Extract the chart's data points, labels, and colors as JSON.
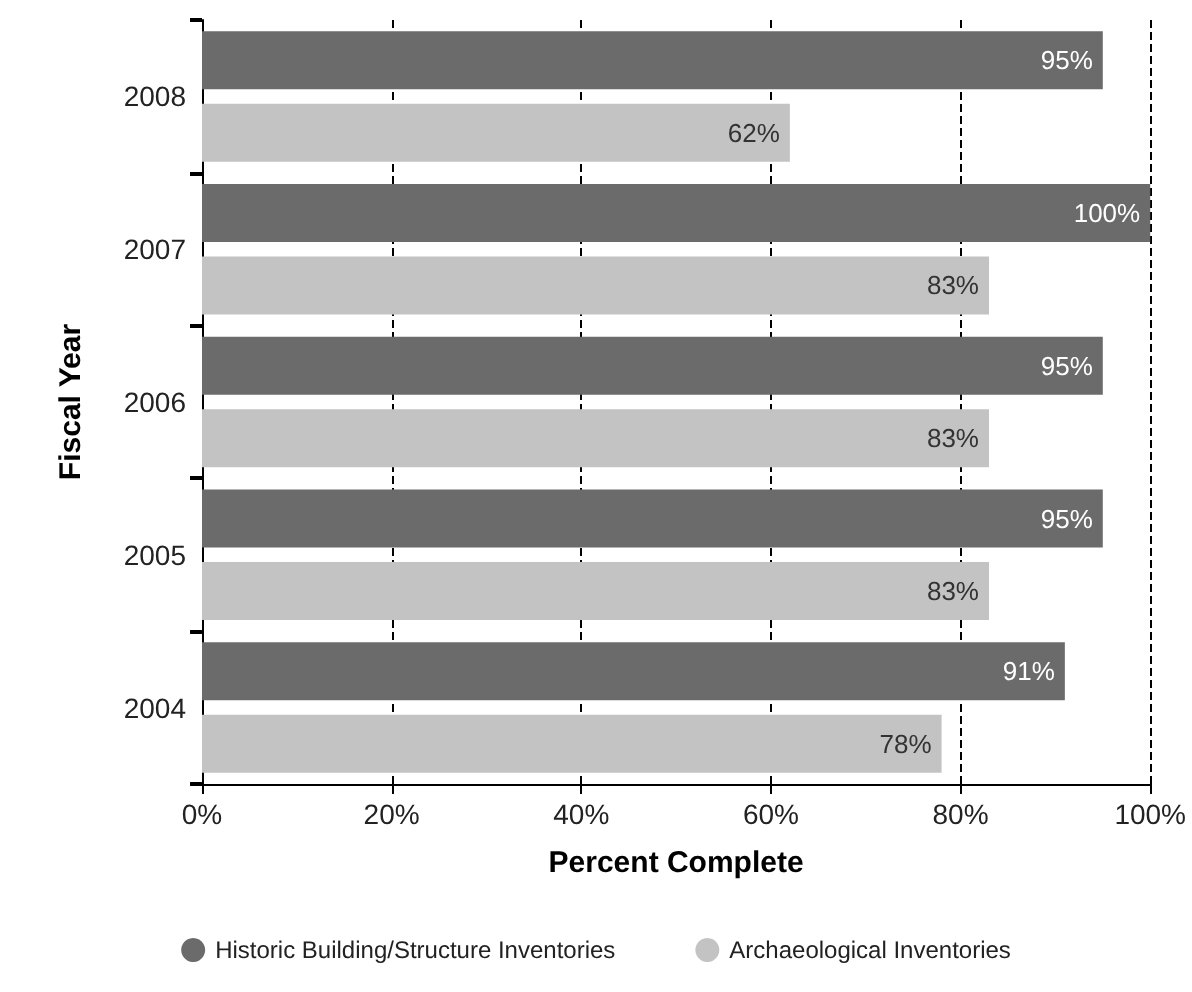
{
  "chart_data": {
    "type": "bar",
    "orientation": "horizontal",
    "ylabel": "Fiscal Year",
    "xlabel": "Percent Complete",
    "categories": [
      "2008",
      "2007",
      "2006",
      "2005",
      "2004"
    ],
    "series": [
      {
        "name": "Historic Building/Structure Inventories",
        "color": "#6b6b6b",
        "values": [
          95,
          100,
          95,
          95,
          91
        ],
        "value_labels": [
          "95%",
          "100%",
          "95%",
          "95%",
          "91%"
        ]
      },
      {
        "name": "Archaeological Inventories",
        "color": "#c3c3c3",
        "values": [
          62,
          83,
          83,
          83,
          78
        ],
        "value_labels": [
          "62%",
          "83%",
          "83%",
          "83%",
          "78%"
        ]
      }
    ],
    "xlim": [
      0,
      100
    ],
    "xticks": [
      {
        "value": 0,
        "label": "0%"
      },
      {
        "value": 20,
        "label": "20%"
      },
      {
        "value": 40,
        "label": "40%"
      },
      {
        "value": 60,
        "label": "60%"
      },
      {
        "value": 80,
        "label": "80%"
      },
      {
        "value": 100,
        "label": "100%"
      }
    ],
    "grid": "x",
    "legend": "bottom",
    "marker": "circle"
  }
}
